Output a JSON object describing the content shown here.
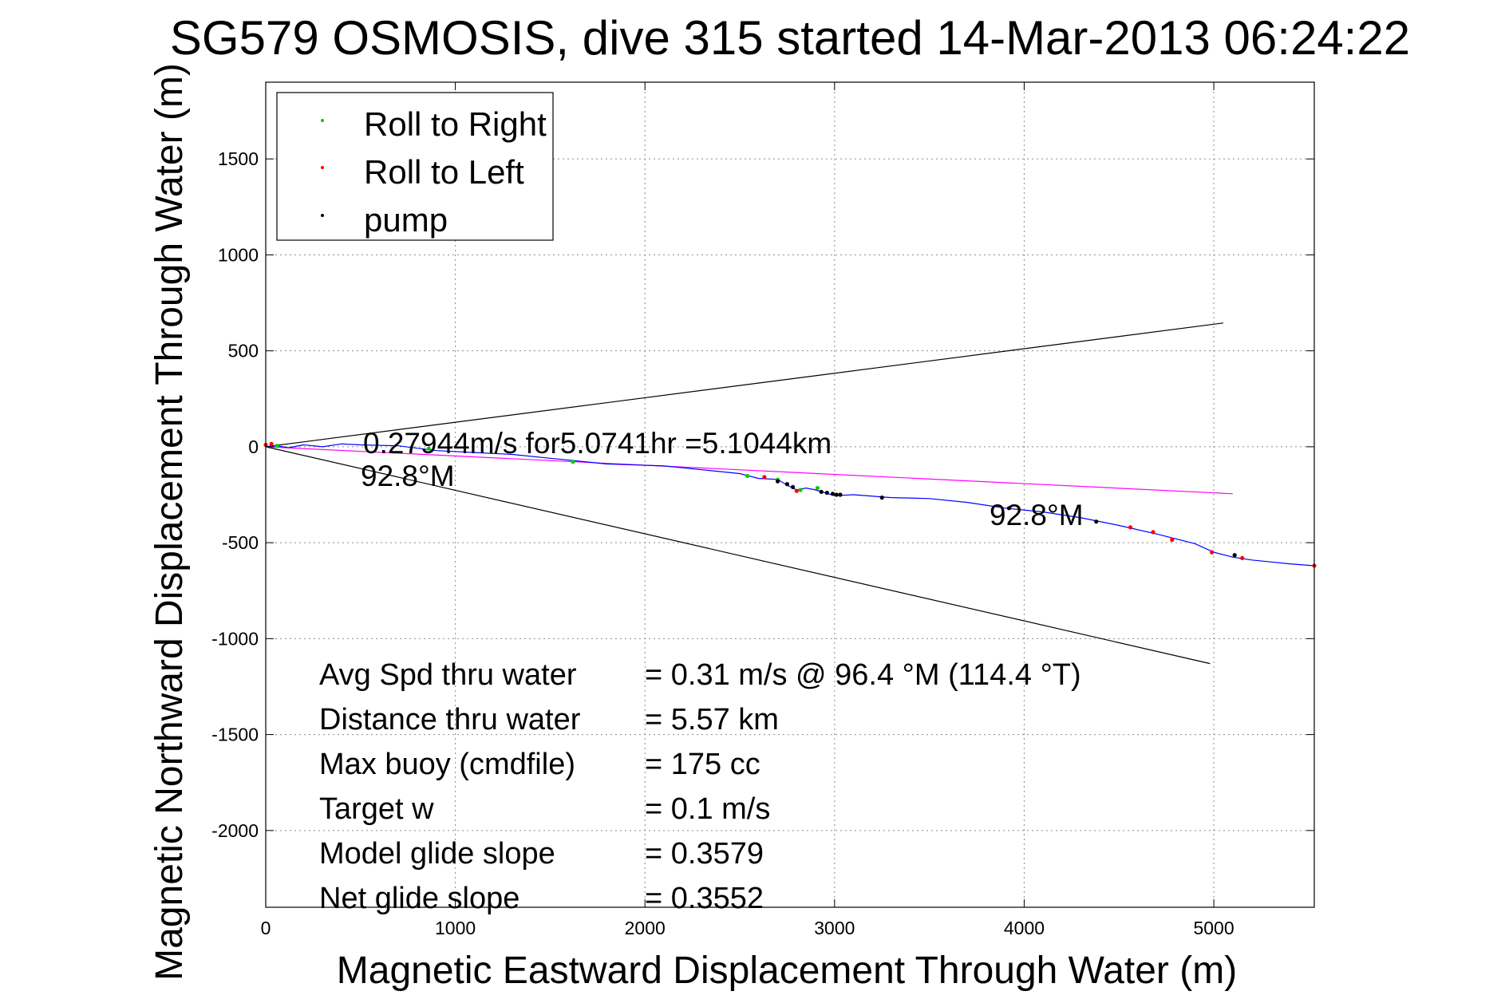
{
  "chart_data": {
    "type": "line",
    "title": "SG579 OSMOSIS, dive 315 started 14-Mar-2013 06:24:22",
    "xlabel": "Magnetic Eastward Displacement Through Water (m)",
    "ylabel": "Magnetic Northward Displacement Through Water (m)",
    "xlim": [
      0,
      5530
    ],
    "ylim": [
      -2400,
      1900
    ],
    "xticks": [
      0,
      1000,
      2000,
      3000,
      4000,
      5000
    ],
    "yticks": [
      1500,
      1000,
      500,
      0,
      -500,
      -1000,
      -1500,
      -2000
    ],
    "grid": true,
    "legend": {
      "placement": "top-left",
      "entries": [
        {
          "label": "Roll to Right",
          "color": "#00cc00"
        },
        {
          "label": "Roll to Left",
          "color": "#ff0000"
        },
        {
          "label": "pump",
          "color": "#000000"
        }
      ]
    },
    "track": {
      "color": "#0000ff",
      "x": [
        0,
        60,
        120,
        200,
        300,
        400,
        500,
        700,
        900,
        1100,
        1300,
        1500,
        1650,
        1800,
        1950,
        2100,
        2300,
        2500,
        2600,
        2700,
        2750,
        2800,
        2850,
        2900,
        3000,
        3100,
        3300,
        3500,
        3700,
        3900,
        4100,
        4300,
        4500,
        4700,
        4900,
        5000,
        5100,
        5200,
        5300,
        5400,
        5530
      ],
      "y": [
        0,
        5,
        -5,
        10,
        0,
        15,
        10,
        5,
        -20,
        -30,
        -40,
        -60,
        -75,
        -90,
        -95,
        -100,
        -120,
        -140,
        -165,
        -170,
        -200,
        -225,
        -215,
        -225,
        -255,
        -250,
        -265,
        -270,
        -290,
        -320,
        -340,
        -370,
        -410,
        -455,
        -505,
        -550,
        -575,
        -590,
        -600,
        -610,
        -620
      ]
    },
    "roll_right": {
      "x": [
        60,
        860,
        1620,
        2540,
        2700,
        2820,
        2910
      ],
      "y": [
        5,
        -10,
        -78,
        -152,
        -172,
        -225,
        -215
      ]
    },
    "roll_left": {
      "x": [
        0,
        30,
        2630,
        2800,
        4560,
        4680,
        4780,
        4990,
        5150,
        5530
      ],
      "y": [
        10,
        15,
        -158,
        -230,
        -420,
        -445,
        -485,
        -550,
        -580,
        -620
      ]
    },
    "pump": {
      "x": [
        2700,
        2750,
        2780,
        2930,
        2960,
        2990,
        3010,
        3030,
        3250,
        3920,
        4380,
        5110
      ],
      "y": [
        -180,
        -195,
        -210,
        -235,
        -240,
        -245,
        -250,
        -250,
        -265,
        -320,
        -390,
        -565
      ]
    },
    "reference_lines": [
      {
        "name": "envelope-upper",
        "color": "#000000",
        "x": [
          0,
          5050
        ],
        "y": [
          0,
          645
        ]
      },
      {
        "name": "envelope-lower",
        "color": "#000000",
        "x": [
          0,
          4980
        ],
        "y": [
          0,
          -1130
        ]
      },
      {
        "name": "current-vector",
        "color": "#ff00ff",
        "x": [
          0,
          5100
        ],
        "y": [
          0,
          -245
        ]
      }
    ],
    "annotations": {
      "speed": "0.27944m/s for5.0741hr =5.1044km",
      "heading_start": "92.8°M",
      "heading_end": "92.8°M"
    },
    "stats": [
      {
        "label": "Avg Spd thru water",
        "value": "=  0.31 m/s @  96.4 °M (114.4 °T)"
      },
      {
        "label": "Distance thru water",
        "value": "=  5.57 km"
      },
      {
        "label": "Max buoy (cmdfile)",
        "value": "= 175 cc"
      },
      {
        "label": "Target w",
        "value": "= 0.1 m/s"
      },
      {
        "label": "Model glide slope",
        "value": "= 0.3579"
      },
      {
        "label": "Net glide slope",
        "value": "= 0.3552"
      }
    ]
  }
}
